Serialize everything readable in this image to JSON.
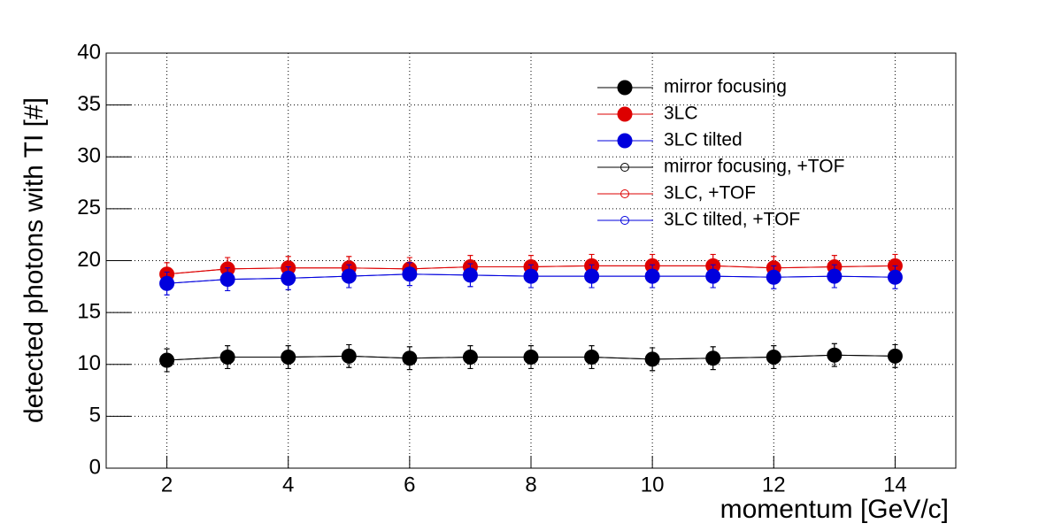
{
  "chart_data": {
    "type": "line",
    "x_label": "momentum [GeV/c]",
    "y_label": "detected photons with TI [#]",
    "x": [
      2,
      3,
      4,
      5,
      6,
      7,
      8,
      9,
      10,
      11,
      12,
      13,
      14
    ],
    "xlim": [
      1,
      15
    ],
    "xticks": [
      2,
      4,
      6,
      8,
      10,
      12,
      14
    ],
    "ylim": [
      0,
      40
    ],
    "yticks": [
      0,
      5,
      10,
      15,
      20,
      25,
      30,
      35,
      40
    ],
    "grid": true,
    "legend": "upper right",
    "series": [
      {
        "name": "mirror focusing",
        "color": "#000000",
        "marker": "filled",
        "values": [
          10.4,
          10.7,
          10.7,
          10.8,
          10.6,
          10.7,
          10.7,
          10.7,
          10.5,
          10.6,
          10.7,
          10.9,
          10.8
        ],
        "errors": [
          1.1,
          1.1,
          1.1,
          1.1,
          1.1,
          1.1,
          1.1,
          1.1,
          1.1,
          1.1,
          1.1,
          1.1,
          1.1
        ]
      },
      {
        "name": "3LC",
        "color": "#dd0000",
        "marker": "filled",
        "values": [
          18.7,
          19.2,
          19.3,
          19.3,
          19.2,
          19.4,
          19.4,
          19.5,
          19.5,
          19.5,
          19.3,
          19.4,
          19.5
        ],
        "errors": [
          1.1,
          1.1,
          1.1,
          1.1,
          1.1,
          1.1,
          1.1,
          1.1,
          1.1,
          1.1,
          1.1,
          1.1,
          1.1
        ]
      },
      {
        "name": "3LC tilted",
        "color": "#0000dd",
        "marker": "filled",
        "values": [
          17.8,
          18.2,
          18.3,
          18.5,
          18.7,
          18.6,
          18.5,
          18.5,
          18.5,
          18.5,
          18.4,
          18.5,
          18.4
        ],
        "errors": [
          1.1,
          1.1,
          1.1,
          1.1,
          1.1,
          1.1,
          1.1,
          1.1,
          1.1,
          1.1,
          1.1,
          1.1,
          1.1
        ]
      },
      {
        "name": "mirror focusing, +TOF",
        "color": "#000000",
        "marker": "open",
        "values": [
          10.4,
          10.7,
          10.7,
          10.8,
          10.6,
          10.7,
          10.7,
          10.7,
          10.5,
          10.6,
          10.7,
          10.9,
          10.8
        ],
        "errors": [
          1.1,
          1.1,
          1.1,
          1.1,
          1.1,
          1.1,
          1.1,
          1.1,
          1.1,
          1.1,
          1.1,
          1.1,
          1.1
        ]
      },
      {
        "name": "3LC, +TOF",
        "color": "#dd0000",
        "marker": "open",
        "values": [
          18.7,
          19.2,
          19.3,
          19.3,
          19.2,
          19.4,
          19.4,
          19.5,
          19.5,
          19.5,
          19.3,
          19.4,
          19.5
        ],
        "errors": [
          1.1,
          1.1,
          1.1,
          1.1,
          1.1,
          1.1,
          1.1,
          1.1,
          1.1,
          1.1,
          1.1,
          1.1,
          1.1
        ]
      },
      {
        "name": "3LC tilted, +TOF",
        "color": "#0000dd",
        "marker": "open",
        "values": [
          17.8,
          18.2,
          18.3,
          18.5,
          18.7,
          18.6,
          18.5,
          18.5,
          18.5,
          18.5,
          18.4,
          18.5,
          18.4
        ],
        "errors": [
          1.1,
          1.1,
          1.1,
          1.1,
          1.1,
          1.1,
          1.1,
          1.1,
          1.1,
          1.1,
          1.1,
          1.1,
          1.1
        ]
      }
    ]
  }
}
